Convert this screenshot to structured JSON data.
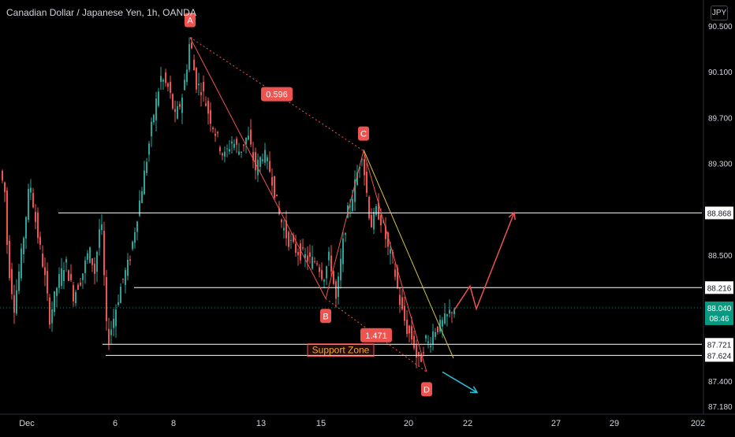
{
  "header": {
    "instrument_title": "Canadian Dollar / Japanese Yen, 1h, OANDA",
    "currency_label": "JPY"
  },
  "chart_data": {
    "type": "candlestick",
    "title": "Canadian Dollar / Japanese Yen, 1h, OANDA",
    "xlabel": "",
    "ylabel": "",
    "ylim": [
      87.18,
      90.5
    ],
    "x_tick_labels": [
      "Dec",
      "6",
      "8",
      "13",
      "15",
      "20",
      "22",
      "27",
      "29",
      "202"
    ],
    "y_tick_labels": [
      "90.500",
      "90.100",
      "89.700",
      "89.300",
      "88.500",
      "87.400",
      "87.180"
    ],
    "grid": false,
    "colors": {
      "up": "#26a69a",
      "down": "#ef5350",
      "pattern": "#ef5350",
      "trendline": "#d4c44a",
      "projection_up": "#ef5350",
      "projection_down": "#26c6da",
      "level": "#ffffff",
      "zone_text": "#f5a623"
    },
    "price_path": [
      [
        0,
        89.3
      ],
      [
        8,
        89.05
      ],
      [
        12,
        88.45
      ],
      [
        20,
        88.05
      ],
      [
        30,
        88.55
      ],
      [
        40,
        89.15
      ],
      [
        48,
        88.75
      ],
      [
        58,
        88.35
      ],
      [
        65,
        87.95
      ],
      [
        75,
        88.25
      ],
      [
        85,
        88.45
      ],
      [
        95,
        88.15
      ],
      [
        105,
        88.3
      ],
      [
        115,
        88.55
      ],
      [
        122,
        88.35
      ],
      [
        130,
        88.85
      ],
      [
        134,
        88.3
      ],
      [
        138,
        87.72
      ],
      [
        146,
        87.95
      ],
      [
        156,
        88.25
      ],
      [
        166,
        88.45
      ],
      [
        176,
        88.85
      ],
      [
        186,
        89.25
      ],
      [
        196,
        89.7
      ],
      [
        206,
        90.05
      ],
      [
        216,
        89.95
      ],
      [
        224,
        89.7
      ],
      [
        232,
        89.85
      ],
      [
        238,
        90.1
      ],
      [
        243,
        90.4
      ],
      [
        250,
        90.0
      ],
      [
        258,
        89.95
      ],
      [
        266,
        89.75
      ],
      [
        276,
        89.55
      ],
      [
        286,
        89.35
      ],
      [
        296,
        89.5
      ],
      [
        306,
        89.4
      ],
      [
        316,
        89.55
      ],
      [
        326,
        89.25
      ],
      [
        336,
        89.4
      ],
      [
        346,
        89.2
      ],
      [
        356,
        88.85
      ],
      [
        366,
        88.65
      ],
      [
        376,
        88.55
      ],
      [
        386,
        88.5
      ],
      [
        396,
        88.45
      ],
      [
        404,
        88.45
      ],
      [
        412,
        88.3
      ],
      [
        420,
        88.5
      ],
      [
        428,
        88.1
      ],
      [
        436,
        88.55
      ],
      [
        442,
        88.85
      ],
      [
        450,
        89.05
      ],
      [
        456,
        89.25
      ],
      [
        461,
        89.4
      ],
      [
        466,
        89.1
      ],
      [
        472,
        88.75
      ],
      [
        480,
        88.9
      ],
      [
        488,
        88.75
      ],
      [
        494,
        88.55
      ],
      [
        500,
        88.45
      ],
      [
        510,
        88.05
      ],
      [
        518,
        87.85
      ],
      [
        526,
        87.75
      ],
      [
        532,
        87.55
      ],
      [
        537,
        87.62
      ],
      [
        541,
        87.78
      ],
      [
        546,
        87.72
      ],
      [
        552,
        87.85
      ],
      [
        560,
        87.88
      ],
      [
        568,
        87.95
      ],
      [
        576,
        88.04
      ]
    ],
    "pattern_points": [
      {
        "label": "A",
        "x_time": 241,
        "price": 90.4
      },
      {
        "label": "B",
        "x_time": 413,
        "price": 88.12
      },
      {
        "label": "C",
        "x_time": 461,
        "price": 89.41
      },
      {
        "label": "D",
        "x_time": 541,
        "price": 87.48
      }
    ],
    "pattern_ratios": [
      {
        "label": "0.596",
        "from": "A",
        "to": "C"
      },
      {
        "label": "1.471",
        "from": "B",
        "to": "D"
      }
    ],
    "horizontal_levels": [
      {
        "price": 88.868,
        "label": "88.868",
        "from_x": 74
      },
      {
        "price": 88.216,
        "label": "88.216",
        "from_x": 170
      },
      {
        "price": 87.721,
        "label": "87.721",
        "from_x": 130
      },
      {
        "price": 87.624,
        "label": "87.624",
        "from_x": 134
      }
    ],
    "current_price": {
      "label": "88.040",
      "countdown": "08:46",
      "price": 88.04
    },
    "annotations": [
      {
        "text": "Support Zone",
        "price": 87.67,
        "x_time": 432
      }
    ],
    "projection_up": [
      [
        576,
        88.02
      ],
      [
        596,
        88.23
      ],
      [
        604,
        88.03
      ],
      [
        652,
        88.87
      ]
    ],
    "projection_down": [
      [
        561,
        87.48
      ],
      [
        605,
        87.3
      ]
    ],
    "trendline": [
      [
        461,
        89.42
      ],
      [
        575,
        87.6
      ]
    ]
  }
}
